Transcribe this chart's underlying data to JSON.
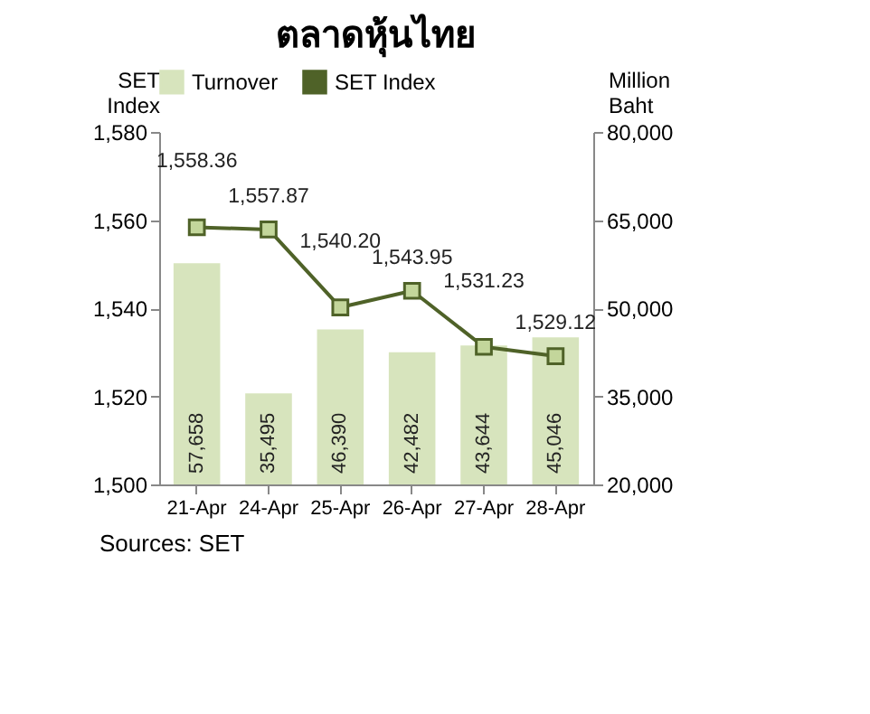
{
  "chart_data": {
    "type": "bar",
    "title": "ตลาดหุ้นไทย",
    "ylabel": "SET Index",
    "y2label": "Million Baht",
    "categories": [
      "21-Apr",
      "24-Apr",
      "25-Apr",
      "26-Apr",
      "27-Apr",
      "28-Apr"
    ],
    "series": [
      {
        "name": "Turnover",
        "axis": "y2",
        "color": "#d7e4bd",
        "values": [
          57658,
          35495,
          46390,
          42482,
          43644,
          45046
        ],
        "value_labels": [
          "57,658",
          "35,495",
          "46,390",
          "42,482",
          "43,644",
          "45,046"
        ]
      },
      {
        "name": "SET Index",
        "type": "line",
        "color": "#4f6228",
        "values": [
          1558.36,
          1557.87,
          1540.2,
          1543.95,
          1531.23,
          1529.12
        ],
        "value_labels": [
          "1,558.36",
          "1,557.87",
          "1,540.20",
          "1,543.95",
          "1,531.23",
          "1,529.12"
        ]
      }
    ],
    "ylim": [
      1500,
      1580
    ],
    "yticks": [
      {
        "value": 1500,
        "label": "1,500"
      },
      {
        "value": 1520,
        "label": "1,520"
      },
      {
        "value": 1540,
        "label": "1,540"
      },
      {
        "value": 1560,
        "label": "1,560"
      },
      {
        "value": 1580,
        "label": "1,580"
      }
    ],
    "y2lim": [
      20000,
      80000
    ],
    "y2ticks": [
      {
        "value": 20000,
        "label": "20,000"
      },
      {
        "value": 35000,
        "label": "35,000"
      },
      {
        "value": 50000,
        "label": "50,000"
      },
      {
        "value": 65000,
        "label": "65,000"
      },
      {
        "value": 80000,
        "label": "80,000"
      }
    ],
    "marker": "square",
    "legend": "top",
    "annotations": [
      "Sources: SET"
    ]
  }
}
